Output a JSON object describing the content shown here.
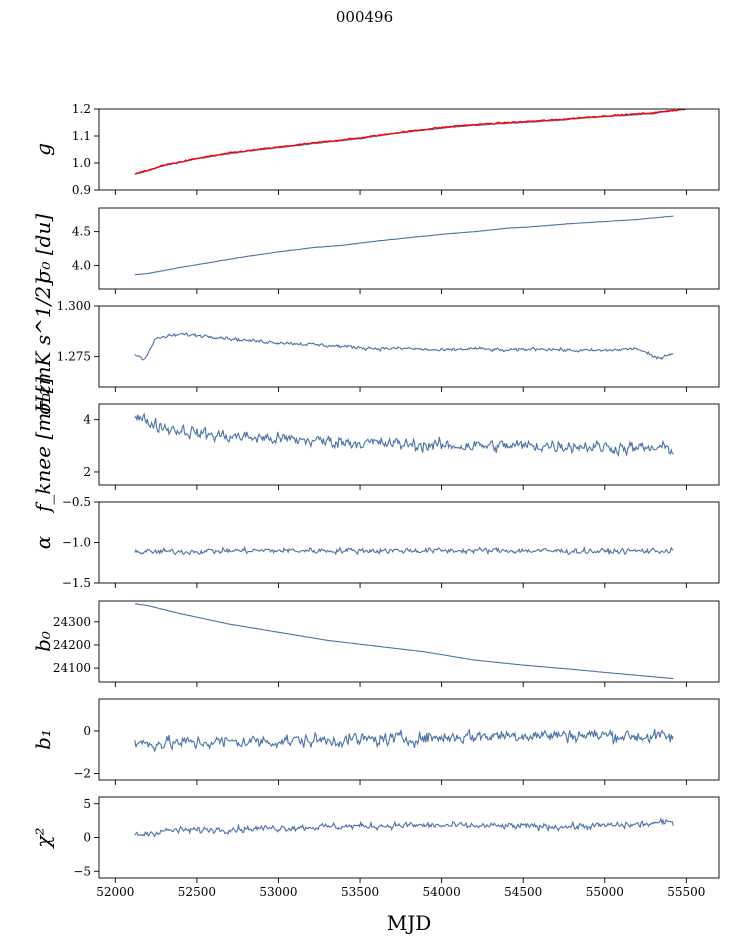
{
  "figure": {
    "title": "000496",
    "xlabel": "MJD",
    "series_color": "#4c72a5",
    "fit_color": "#ff0000"
  },
  "chart_data": [
    {
      "type": "line",
      "id": "g",
      "ylabel": "g",
      "ylim": [
        0.9,
        1.2
      ],
      "yticks": [
        0.9,
        1.0,
        1.1,
        1.2
      ],
      "yticklabels": [
        "0.9",
        "1.0",
        "1.1",
        "1.2"
      ],
      "xlim": [
        51900,
        55700
      ],
      "xticks": [
        52000,
        52500,
        53000,
        53500,
        54000,
        54500,
        55000,
        55500
      ],
      "show_xticklabels": false,
      "series": [
        {
          "name": "gain",
          "color": "#4c72a5",
          "noise": 0.002,
          "x": [
            52120,
            52150,
            52300,
            52500,
            52700,
            52900,
            53100,
            53300,
            53500,
            53700,
            53900,
            54100,
            54300,
            54500,
            54700,
            54900,
            55100,
            55300,
            55420
          ],
          "y": [
            0.958,
            0.962,
            0.99,
            1.015,
            1.035,
            1.05,
            1.063,
            1.078,
            1.09,
            1.108,
            1.122,
            1.135,
            1.143,
            1.15,
            1.157,
            1.168,
            1.175,
            1.183,
            1.197
          ]
        },
        {
          "name": "fit",
          "color": "#ff0000",
          "noise": 0.003,
          "x": [
            52120,
            52150,
            52300,
            52500,
            52700,
            52900,
            53100,
            53300,
            53500,
            53700,
            53900,
            54100,
            54300,
            54500,
            54700,
            54900,
            55100,
            55300,
            55500
          ],
          "y": [
            0.96,
            0.964,
            0.992,
            1.017,
            1.037,
            1.052,
            1.066,
            1.08,
            1.093,
            1.11,
            1.125,
            1.138,
            1.146,
            1.153,
            1.16,
            1.17,
            1.178,
            1.186,
            1.2
          ]
        }
      ]
    },
    {
      "type": "line",
      "id": "sigma0-du",
      "ylabel": "σ₀ [du]",
      "ylim": [
        3.65,
        4.85
      ],
      "yticks": [
        4.0,
        4.5
      ],
      "yticklabels": [
        "4.0",
        "4.5"
      ],
      "xlim": [
        51900,
        55700
      ],
      "xticks": [
        52000,
        52500,
        53000,
        53500,
        54000,
        54500,
        55000,
        55500
      ],
      "show_xticklabels": false,
      "series": [
        {
          "name": "sigma0",
          "color": "#4c72a5",
          "noise": 0.004,
          "x": [
            52120,
            52200,
            52400,
            52600,
            52800,
            53000,
            53200,
            53400,
            53600,
            53800,
            54000,
            54200,
            54400,
            54600,
            54800,
            55000,
            55200,
            55420
          ],
          "y": [
            3.86,
            3.88,
            3.97,
            4.05,
            4.13,
            4.2,
            4.26,
            4.3,
            4.36,
            4.41,
            4.46,
            4.5,
            4.55,
            4.58,
            4.62,
            4.65,
            4.68,
            4.73
          ]
        }
      ]
    },
    {
      "type": "line",
      "id": "sigma0-mk",
      "ylabel": "σ₀[mK s^1/2]",
      "ylim": [
        1.26,
        1.3
      ],
      "yticks": [
        1.275,
        1.3
      ],
      "yticklabels": [
        "1.275",
        "1.300"
      ],
      "xlim": [
        51900,
        55700
      ],
      "xticks": [
        52000,
        52500,
        53000,
        53500,
        54000,
        54500,
        55000,
        55500
      ],
      "show_xticklabels": false,
      "series": [
        {
          "name": "sigma0",
          "color": "#4c72a5",
          "noise": 0.0012,
          "x": [
            52120,
            52180,
            52250,
            52400,
            52600,
            52800,
            53000,
            53200,
            53400,
            53600,
            53800,
            54000,
            54200,
            54400,
            54600,
            54800,
            55000,
            55200,
            55320,
            55420
          ],
          "y": [
            1.276,
            1.274,
            1.284,
            1.286,
            1.285,
            1.283,
            1.282,
            1.281,
            1.28,
            1.279,
            1.279,
            1.278,
            1.279,
            1.278,
            1.279,
            1.278,
            1.278,
            1.279,
            1.274,
            1.277
          ]
        }
      ]
    },
    {
      "type": "line",
      "id": "fknee",
      "ylabel": "f_knee [mHz]",
      "ylim": [
        1.5,
        4.6
      ],
      "yticks": [
        2,
        4
      ],
      "yticklabels": [
        "2",
        "4"
      ],
      "xlim": [
        51900,
        55700
      ],
      "xticks": [
        52000,
        52500,
        53000,
        53500,
        54000,
        54500,
        55000,
        55500
      ],
      "show_xticklabels": false,
      "series": [
        {
          "name": "fknee",
          "color": "#4c72a5",
          "noise": 0.35,
          "x": [
            52120,
            52300,
            52600,
            52900,
            53200,
            53600,
            54000,
            54400,
            54800,
            55200,
            55420
          ],
          "y": [
            4.1,
            3.7,
            3.4,
            3.3,
            3.2,
            3.1,
            3.0,
            3.0,
            3.0,
            2.9,
            2.9
          ]
        }
      ]
    },
    {
      "type": "line",
      "id": "alpha",
      "ylabel": "α",
      "ylim": [
        -1.5,
        -0.5
      ],
      "yticks": [
        -1.5,
        -1.0,
        -0.5
      ],
      "yticklabels": [
        "−1.5",
        "−1.0",
        "−0.5"
      ],
      "xlim": [
        51900,
        55700
      ],
      "xticks": [
        52000,
        52500,
        53000,
        53500,
        54000,
        54500,
        55000,
        55500
      ],
      "show_xticklabels": false,
      "series": [
        {
          "name": "alpha",
          "color": "#4c72a5",
          "noise": 0.05,
          "x": [
            52120,
            52800,
            53600,
            54400,
            55000,
            55420
          ],
          "y": [
            -1.12,
            -1.1,
            -1.1,
            -1.1,
            -1.11,
            -1.1
          ]
        }
      ]
    },
    {
      "type": "line",
      "id": "b0",
      "ylabel": "b₀",
      "ylim": [
        24040,
        24390
      ],
      "yticks": [
        24100,
        24200,
        24300
      ],
      "yticklabels": [
        "24100",
        "24200",
        "24300"
      ],
      "xlim": [
        51900,
        55700
      ],
      "xticks": [
        52000,
        52500,
        53000,
        53500,
        54000,
        54500,
        55000,
        55500
      ],
      "show_xticklabels": false,
      "series": [
        {
          "name": "b0",
          "color": "#4c72a5",
          "noise": 0.6,
          "x": [
            52120,
            52200,
            52400,
            52700,
            53000,
            53300,
            53600,
            53900,
            54200,
            54500,
            54800,
            55100,
            55420
          ],
          "y": [
            24378,
            24370,
            24335,
            24290,
            24255,
            24220,
            24195,
            24170,
            24135,
            24113,
            24095,
            24075,
            24055
          ]
        }
      ]
    },
    {
      "type": "line",
      "id": "b1",
      "ylabel": "b₁",
      "ylim": [
        -2.3,
        1.5
      ],
      "yticks": [
        -2,
        0
      ],
      "yticklabels": [
        "−2",
        "0"
      ],
      "xlim": [
        51900,
        55700
      ],
      "xticks": [
        52000,
        52500,
        53000,
        53500,
        54000,
        54500,
        55000,
        55500
      ],
      "show_xticklabels": false,
      "series": [
        {
          "name": "b1",
          "color": "#4c72a5",
          "noise": 0.45,
          "x": [
            52120,
            52800,
            53600,
            54400,
            55000,
            55420
          ],
          "y": [
            -0.6,
            -0.5,
            -0.4,
            -0.2,
            -0.2,
            -0.3
          ]
        }
      ]
    },
    {
      "type": "line",
      "id": "chi2",
      "ylabel": "χ²",
      "ylim": [
        -6,
        6
      ],
      "yticks": [
        -5,
        0,
        5
      ],
      "yticklabels": [
        "−5",
        "0",
        "5"
      ],
      "xlim": [
        51900,
        55700
      ],
      "xticks": [
        52000,
        52500,
        53000,
        53500,
        54000,
        54500,
        55000,
        55500
      ],
      "xticklabels": [
        "52000",
        "52500",
        "53000",
        "53500",
        "54000",
        "54500",
        "55000",
        "55500"
      ],
      "show_xticklabels": true,
      "series": [
        {
          "name": "chi2",
          "color": "#4c72a5",
          "noise": 0.7,
          "x": [
            52120,
            52300,
            52800,
            53300,
            53800,
            54300,
            54800,
            55200,
            55420
          ],
          "y": [
            0.3,
            1.0,
            1.3,
            1.6,
            1.8,
            1.7,
            1.6,
            1.9,
            2.3
          ]
        }
      ]
    }
  ]
}
